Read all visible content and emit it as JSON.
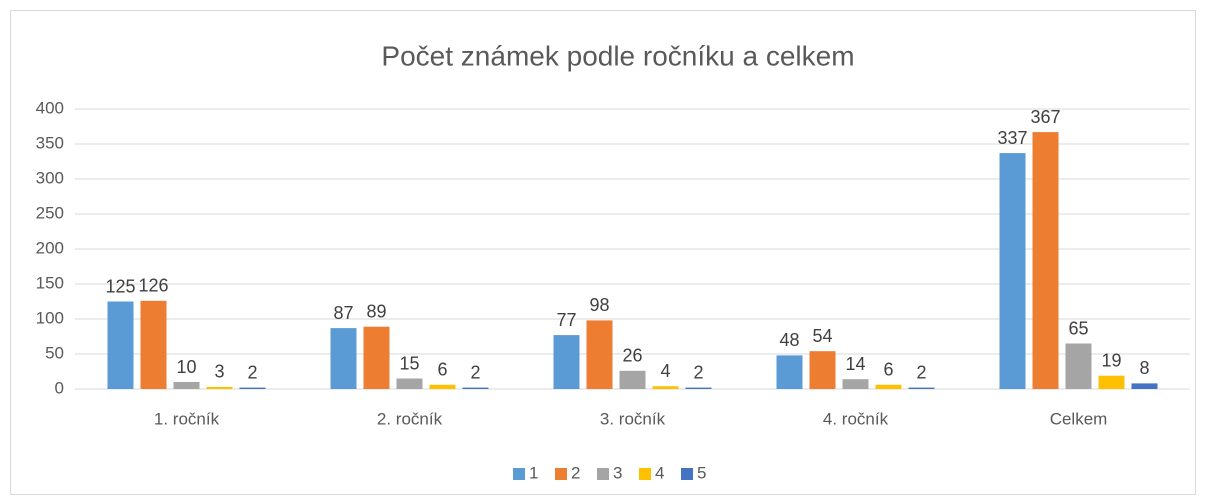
{
  "chart_data": {
    "type": "bar",
    "title": "Počet známek podle ročníku a celkem",
    "categories": [
      "1. ročník",
      "2. ročník",
      "3. ročník",
      "4. ročník",
      "Celkem"
    ],
    "series": [
      {
        "name": "1",
        "color": "#5b9bd5",
        "values": [
          125,
          87,
          77,
          48,
          337
        ]
      },
      {
        "name": "2",
        "color": "#ed7d31",
        "values": [
          126,
          89,
          98,
          54,
          367
        ]
      },
      {
        "name": "3",
        "color": "#a5a5a5",
        "values": [
          10,
          15,
          26,
          14,
          65
        ]
      },
      {
        "name": "4",
        "color": "#ffc000",
        "values": [
          3,
          6,
          4,
          6,
          19
        ]
      },
      {
        "name": "5",
        "color": "#4472c4",
        "values": [
          2,
          2,
          2,
          2,
          8
        ]
      }
    ],
    "ylim": [
      0,
      400
    ],
    "yticks": [
      0,
      50,
      100,
      150,
      200,
      250,
      300,
      350,
      400
    ],
    "grid": true,
    "legend": "bottom"
  }
}
